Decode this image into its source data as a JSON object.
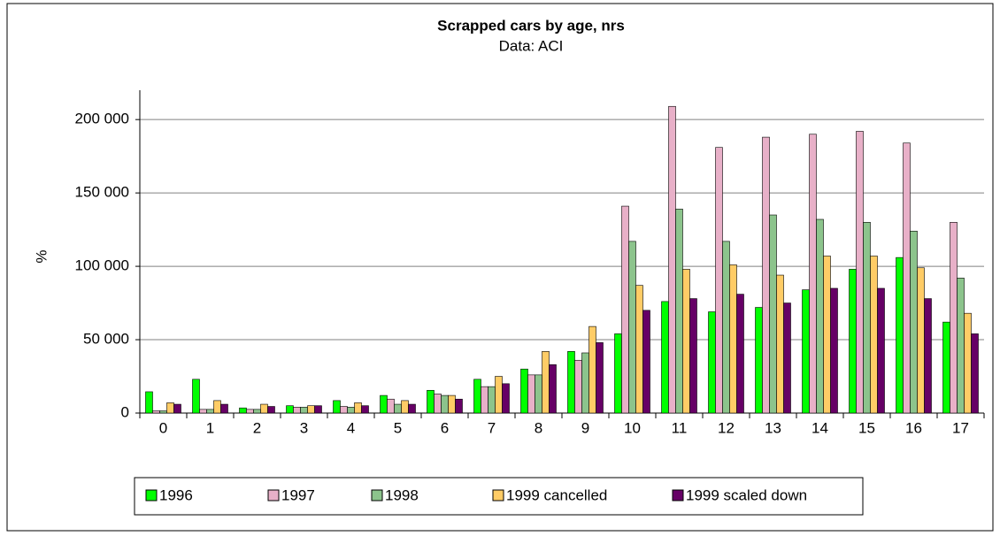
{
  "chart_data": {
    "type": "bar",
    "title": "Scrapped cars by age, nrs",
    "subtitle": "Data: ACI",
    "y_label": "%",
    "categories": [
      "0",
      "1",
      "2",
      "3",
      "4",
      "5",
      "6",
      "7",
      "8",
      "9",
      "10",
      "11",
      "12",
      "13",
      "14",
      "15",
      "16",
      "17"
    ],
    "series": [
      {
        "name": "1996",
        "color": "#00ff00",
        "values": [
          14500,
          23000,
          3500,
          5000,
          8500,
          12000,
          15500,
          23000,
          30000,
          42000,
          54000,
          76000,
          69000,
          72000,
          84000,
          98000,
          106000,
          62000
        ]
      },
      {
        "name": "1997",
        "color": "#e8b0c8",
        "values": [
          1500,
          2500,
          2500,
          4000,
          4500,
          9500,
          13000,
          18000,
          26000,
          36000,
          141000,
          209000,
          181000,
          188000,
          190000,
          192000,
          184000,
          130000
        ]
      },
      {
        "name": "1998",
        "color": "#8cc48c",
        "values": [
          1500,
          2500,
          2500,
          4000,
          4000,
          6000,
          12000,
          18000,
          26000,
          41000,
          117000,
          139000,
          117000,
          135000,
          132000,
          130000,
          124000,
          92000
        ]
      },
      {
        "name": "1999 cancelled",
        "color": "#ffcc66",
        "values": [
          7000,
          8500,
          6000,
          5000,
          7000,
          8500,
          12000,
          25000,
          42000,
          59000,
          87000,
          98000,
          101000,
          94000,
          107000,
          107000,
          99000,
          68000
        ]
      },
      {
        "name": "1999 scaled down",
        "color": "#660066",
        "values": [
          6000,
          6000,
          4500,
          5000,
          5000,
          6000,
          9500,
          20000,
          33000,
          48000,
          70000,
          78000,
          81000,
          75000,
          85000,
          85000,
          78000,
          54000
        ]
      }
    ],
    "ylim": [
      0,
      220000
    ],
    "yticks": [
      0,
      {
        "value": 50000,
        "label": "50 000"
      },
      {
        "value": 100000,
        "label": "100 000"
      },
      {
        "value": 150000,
        "label": "150 000"
      },
      {
        "value": 200000,
        "label": "200 000"
      }
    ],
    "grid": true
  }
}
